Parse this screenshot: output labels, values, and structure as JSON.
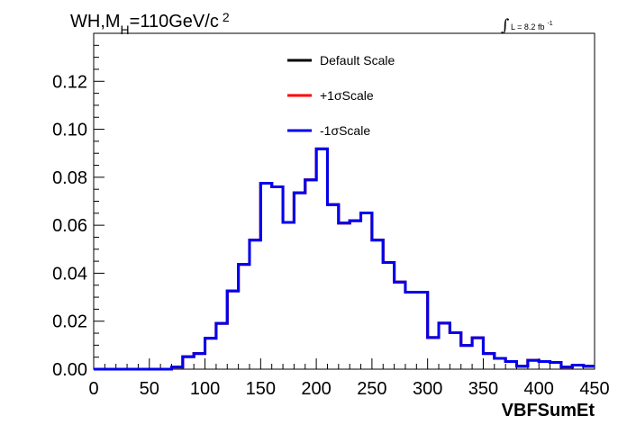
{
  "header": {
    "title_main": "WH,M",
    "title_sub": "H",
    "title_rest": "=110GeV/c",
    "title_sup": "2",
    "lumi_integral": "∫",
    "lumi_text": "L = 8.2 fb",
    "lumi_sup": "-1"
  },
  "chart_data": {
    "type": "line",
    "xlabel": "VBFSumEt",
    "ylabel": "",
    "xlim": [
      0,
      450
    ],
    "ylim": [
      0,
      0.14
    ],
    "x_ticks": [
      "0",
      "50",
      "100",
      "150",
      "200",
      "250",
      "300",
      "350",
      "400",
      "450"
    ],
    "y_ticks": [
      "0.00",
      "0.02",
      "0.04",
      "0.06",
      "0.08",
      "0.10",
      "0.12"
    ],
    "bin_width": 10,
    "x": [
      0,
      10,
      20,
      30,
      40,
      50,
      60,
      70,
      80,
      90,
      100,
      110,
      120,
      130,
      140,
      150,
      160,
      170,
      180,
      190,
      200,
      210,
      220,
      230,
      240,
      250,
      260,
      270,
      280,
      290,
      300,
      310,
      320,
      330,
      340,
      350,
      360,
      370,
      380,
      390,
      400,
      410,
      420,
      430,
      440
    ],
    "series": [
      {
        "name": "Default Scale",
        "color": "#000000",
        "values": [
          0.0,
          0.0,
          0.0,
          0.0,
          0.0,
          0.0,
          0.0,
          0.0009,
          0.0052,
          0.0065,
          0.0129,
          0.0191,
          0.0326,
          0.0437,
          0.0538,
          0.0775,
          0.076,
          0.0612,
          0.0735,
          0.0789,
          0.0918,
          0.0686,
          0.0609,
          0.0619,
          0.0651,
          0.0538,
          0.0445,
          0.0363,
          0.0321,
          0.0321,
          0.0132,
          0.0192,
          0.0152,
          0.0099,
          0.0131,
          0.0065,
          0.0045,
          0.0032,
          0.0012,
          0.0037,
          0.0032,
          0.0028,
          0.0009,
          0.0017,
          0.0012
        ]
      },
      {
        "name": "+1σScale",
        "color": "#ff0000",
        "values": [
          0.0,
          0.0,
          0.0,
          0.0,
          0.0,
          0.0,
          0.0,
          0.0009,
          0.0052,
          0.0065,
          0.0129,
          0.0191,
          0.0326,
          0.0437,
          0.0538,
          0.0775,
          0.076,
          0.0612,
          0.0735,
          0.0789,
          0.0918,
          0.0686,
          0.0609,
          0.0619,
          0.0651,
          0.0538,
          0.0445,
          0.0363,
          0.0321,
          0.0321,
          0.0132,
          0.0192,
          0.0152,
          0.0099,
          0.0131,
          0.0065,
          0.0045,
          0.0032,
          0.0012,
          0.0037,
          0.0032,
          0.0028,
          0.0009,
          0.0017,
          0.0012
        ]
      },
      {
        "name": "-1σScale",
        "color": "#0000ee",
        "values": [
          0.0,
          0.0,
          0.0,
          0.0,
          0.0,
          0.0,
          0.0,
          0.0009,
          0.0052,
          0.0065,
          0.0129,
          0.0191,
          0.0326,
          0.0437,
          0.0538,
          0.0775,
          0.076,
          0.0612,
          0.0735,
          0.0789,
          0.0918,
          0.0686,
          0.0609,
          0.0619,
          0.0651,
          0.0538,
          0.0445,
          0.0363,
          0.0321,
          0.0321,
          0.0132,
          0.0192,
          0.0152,
          0.0099,
          0.0131,
          0.0065,
          0.0045,
          0.0032,
          0.0012,
          0.0037,
          0.0032,
          0.0028,
          0.0009,
          0.0017,
          0.0012
        ]
      }
    ],
    "legend_placement": "top-center",
    "grid": false
  }
}
